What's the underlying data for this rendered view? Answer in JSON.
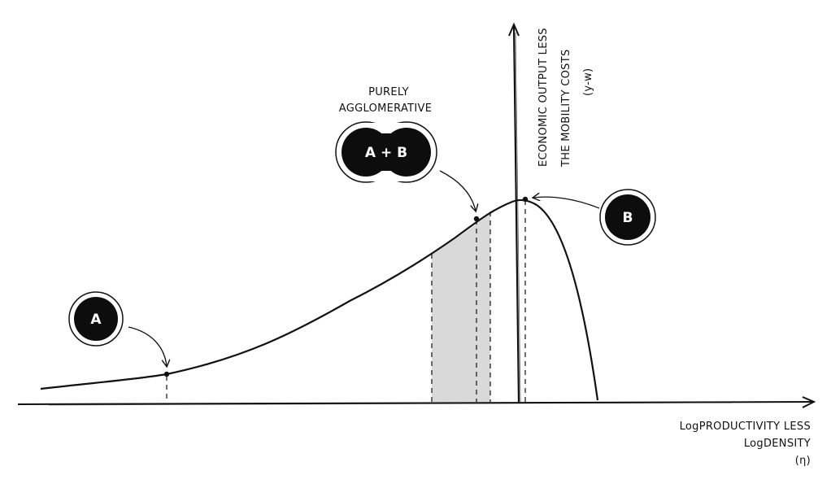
{
  "diagram": {
    "y_axis_label_line1": "ECONOMIC OUTPUT LESS",
    "y_axis_label_line2": "THE MOBILITY COSTS",
    "y_axis_label_line3": "(y-w)",
    "x_axis_label_line1": "LogPRODUCTIVITY LESS",
    "x_axis_label_line2": "LogDENSITY",
    "x_axis_label_line3": "(η)",
    "region_label_line1": "PURELY",
    "region_label_line2": "AGGLOMERATIVE",
    "badge_a": "A",
    "badge_ab": "A + B",
    "badge_b": "B"
  },
  "colors": {
    "ink": "#111111",
    "badge_fill": "#0d0d0d",
    "shade": "#d9d9d9",
    "background": "#ffffff"
  }
}
